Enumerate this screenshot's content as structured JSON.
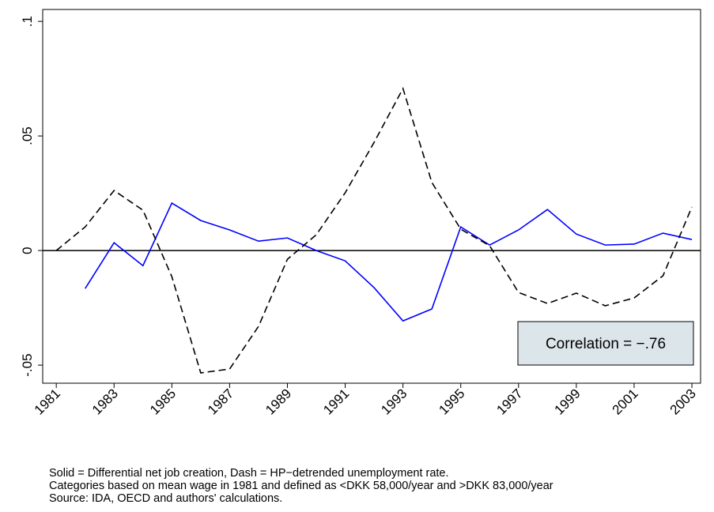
{
  "chart_data": {
    "type": "line",
    "x": [
      1981,
      1982,
      1983,
      1984,
      1985,
      1986,
      1987,
      1988,
      1989,
      1990,
      1991,
      1992,
      1993,
      1994,
      1995,
      1996,
      1997,
      1998,
      1999,
      2000,
      2001,
      2002,
      2003
    ],
    "series": [
      {
        "color": "#0000ff",
        "style": "solid",
        "values": [
          null,
          -0.0166,
          0.0034,
          -0.0066,
          0.0207,
          0.0131,
          0.009,
          0.0041,
          0.0055,
          0,
          -0.0045,
          -0.0162,
          -0.0307,
          -0.0255,
          0.0103,
          0.0024,
          0.009,
          0.0179,
          0.0072,
          0.0024,
          0.0028,
          0.0076,
          0.0048
        ]
      },
      {
        "color": "#000000",
        "style": "dashed",
        "values": [
          0,
          0.0103,
          0.0262,
          0.0176,
          -0.0114,
          -0.0534,
          -0.0517,
          -0.0331,
          -0.0038,
          0.0069,
          0.0252,
          0.0472,
          0.0707,
          0.0297,
          0.0093,
          0.0021,
          -0.0183,
          -0.0231,
          -0.0186,
          -0.0241,
          -0.0207,
          -0.011,
          0.019
        ]
      }
    ],
    "xlim": [
      1980.53,
      2003.3
    ],
    "xticks": [
      1981,
      1983,
      1985,
      1987,
      1989,
      1991,
      1993,
      1995,
      1997,
      1999,
      2001,
      2003
    ],
    "ylim": [
      -0.0579,
      0.1052
    ],
    "yticks": [
      {
        "value": -0.05,
        "label": "-.05"
      },
      0,
      {
        "value": 0.05,
        "label": ".05"
      },
      {
        "value": 0.1,
        "label": ".1"
      }
    ],
    "zero_line": true,
    "annotation": "Correlation = −.76",
    "notes": [
      "Solid = Differential net job creation, Dash = HP−detrended unemployment rate.",
      "Categories based on mean wage in 1981 and defined as <DKK 58,000/year and >DKK 83,000/year",
      "Source: IDA, OECD and authors' calculations."
    ]
  }
}
